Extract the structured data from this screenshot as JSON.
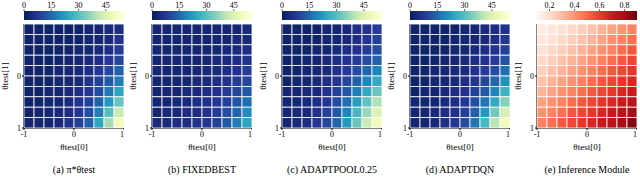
{
  "chart_data": [
    {
      "type": "heatmap",
      "title": "(a) π*θtest",
      "xlabel": "θtest[0]",
      "ylabel": "θtest[1]",
      "x": [
        -0.9,
        -0.7,
        -0.5,
        -0.3,
        -0.1,
        0.1,
        0.3,
        0.5,
        0.7,
        0.9
      ],
      "y": [
        -0.9,
        -0.7,
        -0.5,
        -0.3,
        -0.1,
        0.1,
        0.3,
        0.5,
        0.7,
        0.9
      ],
      "xlim": [
        -1,
        1
      ],
      "ylim": [
        -1,
        1
      ],
      "xticks": [
        -1,
        0,
        1
      ],
      "yticks": [
        -1,
        0,
        1
      ],
      "colorbar_lim": [
        0,
        55
      ],
      "colorbar_ticks": [
        0,
        15,
        30,
        45
      ],
      "cells": [
        [
          2,
          2,
          2,
          2,
          2,
          2,
          3,
          3,
          4,
          5
        ],
        [
          2,
          2,
          2,
          2,
          2,
          2,
          3,
          3,
          4,
          6
        ],
        [
          2,
          2,
          2,
          2,
          2,
          3,
          3,
          4,
          5,
          8
        ],
        [
          2,
          2,
          2,
          2,
          3,
          3,
          4,
          5,
          7,
          10
        ],
        [
          2,
          2,
          2,
          3,
          3,
          4,
          5,
          7,
          10,
          14
        ],
        [
          2,
          2,
          2,
          3,
          3,
          4,
          6,
          9,
          13,
          18
        ],
        [
          2,
          2,
          3,
          3,
          4,
          5,
          7,
          11,
          17,
          24
        ],
        [
          2,
          2,
          3,
          3,
          4,
          6,
          9,
          14,
          22,
          32
        ],
        [
          2,
          3,
          3,
          4,
          5,
          7,
          11,
          18,
          30,
          42
        ],
        [
          3,
          3,
          3,
          4,
          6,
          9,
          14,
          24,
          38,
          50
        ]
      ]
    },
    {
      "type": "heatmap",
      "title": "(b) FIXEDBEST",
      "xlabel": "θtest[0]",
      "ylabel": "θtest[1]",
      "x": [
        -0.9,
        -0.7,
        -0.5,
        -0.3,
        -0.1,
        0.1,
        0.3,
        0.5,
        0.7,
        0.9
      ],
      "y": [
        -0.9,
        -0.7,
        -0.5,
        -0.3,
        -0.1,
        0.1,
        0.3,
        0.5,
        0.7,
        0.9
      ],
      "xlim": [
        -1,
        1
      ],
      "ylim": [
        -1,
        1
      ],
      "xticks": [
        -1,
        0,
        1
      ],
      "yticks": [
        -1,
        0,
        1
      ],
      "colorbar_lim": [
        0,
        55
      ],
      "colorbar_ticks": [
        0,
        15,
        30,
        45
      ],
      "cells": [
        [
          3,
          3,
          3,
          3,
          3,
          3,
          3,
          3,
          3,
          4
        ],
        [
          3,
          3,
          3,
          3,
          3,
          3,
          3,
          3,
          4,
          4
        ],
        [
          3,
          3,
          3,
          3,
          3,
          3,
          3,
          4,
          4,
          5
        ],
        [
          3,
          3,
          3,
          3,
          3,
          3,
          4,
          4,
          5,
          6
        ],
        [
          3,
          3,
          3,
          3,
          3,
          4,
          4,
          5,
          6,
          8
        ],
        [
          3,
          3,
          3,
          3,
          4,
          4,
          5,
          6,
          8,
          10
        ],
        [
          3,
          3,
          3,
          4,
          4,
          5,
          6,
          8,
          10,
          13
        ],
        [
          3,
          3,
          4,
          4,
          5,
          6,
          7,
          9,
          12,
          16
        ],
        [
          3,
          4,
          4,
          5,
          5,
          6,
          8,
          11,
          15,
          20
        ],
        [
          4,
          4,
          5,
          5,
          6,
          7,
          9,
          13,
          18,
          24
        ]
      ]
    },
    {
      "type": "heatmap",
      "title": "(c) ADAPTPOOL0.25",
      "xlabel": "θtest[0]",
      "ylabel": "θtest[1]",
      "x": [
        -0.9,
        -0.7,
        -0.5,
        -0.3,
        -0.1,
        0.1,
        0.3,
        0.5,
        0.7,
        0.9
      ],
      "y": [
        -0.9,
        -0.7,
        -0.5,
        -0.3,
        -0.1,
        0.1,
        0.3,
        0.5,
        0.7,
        0.9
      ],
      "xlim": [
        -1,
        1
      ],
      "ylim": [
        -1,
        1
      ],
      "xticks": [
        -1,
        0,
        1
      ],
      "yticks": [
        -1,
        0,
        1
      ],
      "colorbar_lim": [
        0,
        55
      ],
      "colorbar_ticks": [
        0,
        15,
        30,
        45
      ],
      "cells": [
        [
          2,
          2,
          2,
          2,
          3,
          3,
          4,
          5,
          6,
          8
        ],
        [
          2,
          2,
          2,
          2,
          3,
          3,
          4,
          5,
          7,
          9
        ],
        [
          2,
          2,
          2,
          3,
          3,
          4,
          5,
          6,
          8,
          11
        ],
        [
          2,
          2,
          3,
          3,
          4,
          5,
          6,
          8,
          11,
          14
        ],
        [
          2,
          2,
          3,
          3,
          4,
          6,
          8,
          11,
          15,
          19
        ],
        [
          2,
          3,
          3,
          4,
          5,
          7,
          10,
          14,
          19,
          25
        ],
        [
          3,
          3,
          4,
          4,
          6,
          9,
          13,
          18,
          25,
          32
        ],
        [
          3,
          3,
          4,
          5,
          7,
          11,
          16,
          23,
          31,
          39
        ],
        [
          3,
          4,
          4,
          6,
          9,
          13,
          19,
          28,
          37,
          45
        ],
        [
          3,
          4,
          5,
          7,
          10,
          15,
          22,
          32,
          42,
          50
        ]
      ]
    },
    {
      "type": "heatmap",
      "title": "(d) ADAPTDQN",
      "xlabel": "θtest[0]",
      "ylabel": "θtest[1]",
      "x": [
        -0.9,
        -0.7,
        -0.5,
        -0.3,
        -0.1,
        0.1,
        0.3,
        0.5,
        0.7,
        0.9
      ],
      "y": [
        -0.9,
        -0.7,
        -0.5,
        -0.3,
        -0.1,
        0.1,
        0.3,
        0.5,
        0.7,
        0.9
      ],
      "xlim": [
        -1,
        1
      ],
      "ylim": [
        -1,
        1
      ],
      "xticks": [
        -1,
        0,
        1
      ],
      "yticks": [
        -1,
        0,
        1
      ],
      "colorbar_lim": [
        0,
        55
      ],
      "colorbar_ticks": [
        0,
        15,
        30,
        45
      ],
      "cells": [
        [
          2,
          2,
          2,
          2,
          2,
          3,
          3,
          4,
          5,
          6
        ],
        [
          2,
          2,
          2,
          2,
          3,
          3,
          3,
          4,
          5,
          7
        ],
        [
          2,
          2,
          2,
          2,
          3,
          3,
          4,
          5,
          6,
          9
        ],
        [
          2,
          2,
          2,
          3,
          3,
          4,
          5,
          6,
          8,
          12
        ],
        [
          2,
          2,
          3,
          3,
          4,
          4,
          6,
          8,
          11,
          16
        ],
        [
          2,
          2,
          3,
          3,
          4,
          5,
          7,
          10,
          15,
          21
        ],
        [
          2,
          3,
          3,
          4,
          5,
          6,
          9,
          13,
          19,
          27
        ],
        [
          3,
          3,
          3,
          4,
          5,
          7,
          11,
          17,
          25,
          35
        ],
        [
          3,
          3,
          4,
          5,
          6,
          9,
          14,
          22,
          33,
          44
        ],
        [
          3,
          3,
          4,
          5,
          7,
          11,
          17,
          28,
          40,
          50
        ]
      ]
    },
    {
      "type": "heatmap",
      "title": "(e) Inference Module",
      "xlabel": "θtest[0]",
      "ylabel": "θtest[1]",
      "x": [
        -0.9,
        -0.7,
        -0.5,
        -0.3,
        -0.1,
        0.1,
        0.3,
        0.5,
        0.7,
        0.9
      ],
      "y": [
        -0.9,
        -0.7,
        -0.5,
        -0.3,
        -0.1,
        0.1,
        0.3,
        0.5,
        0.7,
        0.9
      ],
      "xlim": [
        -1,
        1
      ],
      "ylim": [
        -1,
        1
      ],
      "xticks": [
        -1,
        0,
        1
      ],
      "yticks": [
        -1,
        0,
        1
      ],
      "colorbar_lim": [
        0.1,
        0.9
      ],
      "colorbar_ticks": [
        0.2,
        0.4,
        0.6,
        0.8
      ],
      "cells": [
        [
          0.15,
          0.17,
          0.19,
          0.22,
          0.25,
          0.28,
          0.32,
          0.36,
          0.4,
          0.44
        ],
        [
          0.17,
          0.19,
          0.22,
          0.25,
          0.28,
          0.32,
          0.36,
          0.4,
          0.44,
          0.49
        ],
        [
          0.19,
          0.22,
          0.25,
          0.28,
          0.32,
          0.36,
          0.4,
          0.44,
          0.49,
          0.54
        ],
        [
          0.22,
          0.25,
          0.28,
          0.32,
          0.36,
          0.4,
          0.44,
          0.49,
          0.54,
          0.58
        ],
        [
          0.25,
          0.28,
          0.32,
          0.36,
          0.4,
          0.44,
          0.49,
          0.54,
          0.58,
          0.62
        ],
        [
          0.28,
          0.32,
          0.36,
          0.4,
          0.44,
          0.49,
          0.54,
          0.58,
          0.62,
          0.66
        ],
        [
          0.32,
          0.36,
          0.4,
          0.44,
          0.49,
          0.54,
          0.58,
          0.62,
          0.66,
          0.7
        ],
        [
          0.36,
          0.4,
          0.44,
          0.49,
          0.54,
          0.58,
          0.62,
          0.66,
          0.7,
          0.75
        ],
        [
          0.4,
          0.44,
          0.49,
          0.54,
          0.58,
          0.62,
          0.66,
          0.7,
          0.75,
          0.8
        ],
        [
          0.44,
          0.49,
          0.54,
          0.58,
          0.62,
          0.66,
          0.7,
          0.75,
          0.8,
          0.85
        ]
      ]
    }
  ]
}
